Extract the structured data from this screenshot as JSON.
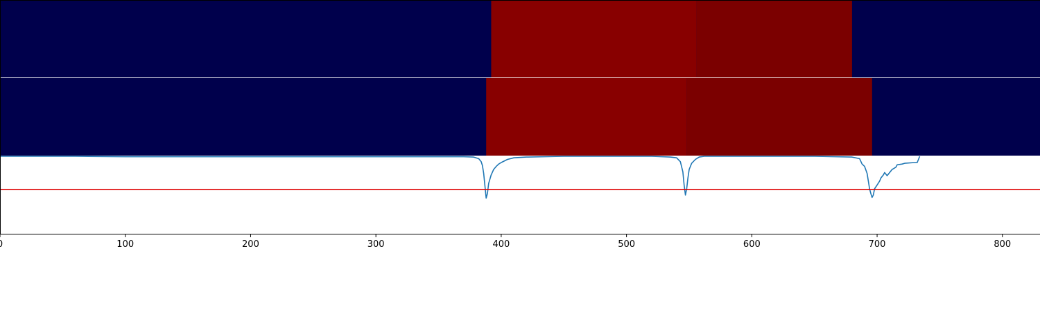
{
  "chart_data": {
    "type": "line",
    "xlim": [
      0,
      830
    ],
    "x_ticks": [
      0,
      100,
      200,
      300,
      400,
      500,
      600,
      700,
      800
    ],
    "x_tick_labels": [
      "0",
      "100",
      "200",
      "300",
      "400",
      "500",
      "600",
      "700",
      "800"
    ],
    "title": "",
    "xlabel": "",
    "ylabel": "",
    "grid": false,
    "colors": {
      "background_band": "#00004c",
      "segment_a": "#880000",
      "segment_b": "#7b0000",
      "signal": "#1f77b4",
      "threshold": "#dd0000",
      "axis": "#000000",
      "divider": "#ffffff"
    },
    "bands": [
      {
        "row": 1,
        "segments": [
          {
            "x0": 392,
            "x1": 556,
            "tone": "segment_a"
          },
          {
            "x0": 556,
            "x1": 680,
            "tone": "segment_b"
          }
        ]
      },
      {
        "row": 2,
        "segments": [
          {
            "x0": 388,
            "x1": 548,
            "tone": "segment_a"
          },
          {
            "x0": 548,
            "x1": 696,
            "tone": "segment_b"
          }
        ]
      }
    ],
    "threshold": 0.57,
    "signal_ylim": [
      0,
      1
    ],
    "series": [
      {
        "x": [
          0,
          60,
          100,
          200,
          300,
          370,
          378,
          382,
          384,
          385,
          386,
          387,
          388,
          389,
          390,
          392,
          394,
          396,
          398,
          400,
          405,
          410,
          420,
          450,
          500,
          520,
          535,
          540,
          543,
          545,
          546,
          547,
          548,
          549,
          550,
          552,
          555,
          558,
          562,
          570,
          600,
          650,
          680,
          686,
          688,
          690,
          692,
          693,
          694,
          695,
          696,
          697,
          698,
          700,
          702,
          703,
          704,
          705,
          706,
          708,
          710,
          712,
          713,
          715,
          716,
          720,
          722,
          730,
          732,
          733,
          734
        ],
        "y": [
          1.0,
          1.0,
          0.995,
          0.995,
          0.995,
          0.995,
          0.99,
          0.97,
          0.93,
          0.88,
          0.78,
          0.62,
          0.46,
          0.52,
          0.65,
          0.76,
          0.83,
          0.87,
          0.9,
          0.92,
          0.96,
          0.98,
          0.99,
          1.0,
          1.0,
          1.0,
          0.99,
          0.98,
          0.93,
          0.8,
          0.63,
          0.5,
          0.58,
          0.72,
          0.83,
          0.91,
          0.96,
          0.99,
          1.0,
          1.0,
          1.0,
          1.0,
          0.99,
          0.97,
          0.9,
          0.87,
          0.78,
          0.68,
          0.58,
          0.52,
          0.47,
          0.5,
          0.58,
          0.63,
          0.68,
          0.72,
          0.74,
          0.76,
          0.79,
          0.75,
          0.79,
          0.83,
          0.84,
          0.86,
          0.89,
          0.9,
          0.91,
          0.92,
          0.92,
          0.96,
          1.0
        ]
      }
    ]
  }
}
